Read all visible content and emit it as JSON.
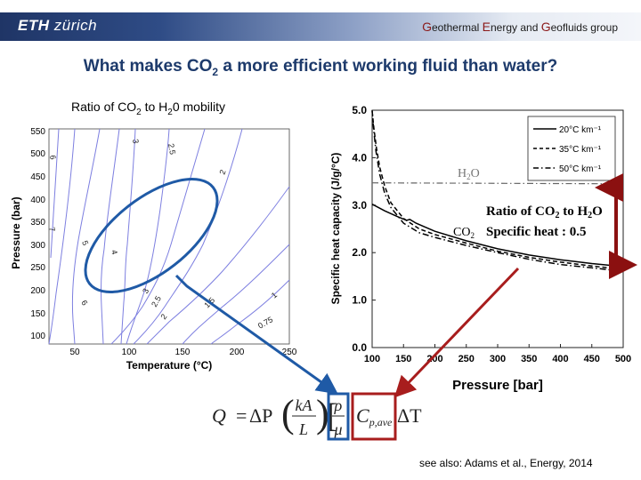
{
  "header": {
    "logo_main": "ETH",
    "logo_sub": "zürich",
    "group": {
      "G1": "G",
      "w1": "eothermal ",
      "E": "E",
      "w2": "nergy and ",
      "G2": "G",
      "w3": "eofluids group"
    }
  },
  "slide": {
    "title_pre": "What makes CO",
    "title_sub": "2",
    "title_post": " a more efficient working fluid than water?",
    "reference": "see also:  Adams et al., Energy, 2014"
  },
  "left_plot": {
    "title_pre": "Ratio of CO",
    "title_sub1": "2",
    "title_mid": " to H",
    "title_sub2": "2",
    "title_post": "0 mobility",
    "xlabel": "Temperature (°C)",
    "ylabel": "Pressure (bar)",
    "xticks": [
      "50",
      "100",
      "150",
      "200",
      "250"
    ],
    "yticks": [
      "100",
      "150",
      "200",
      "250",
      "300",
      "350",
      "400",
      "450",
      "500",
      "550"
    ],
    "contour_labels": [
      "6",
      "7",
      "5",
      "6",
      "4",
      "3",
      "2.5",
      "3",
      "2.5",
      "2",
      "2",
      "1.5",
      "1",
      "0.75"
    ]
  },
  "chart_data": {
    "type": "line",
    "xlabel": "Pressure [bar]",
    "ylabel": "Specific heat capacity (J/g/°C)",
    "xlim": [
      100,
      500
    ],
    "ylim": [
      0,
      5
    ],
    "xticks": [
      "100",
      "150",
      "200",
      "250",
      "300",
      "350",
      "400",
      "450",
      "500"
    ],
    "yticks": [
      "0.0",
      "1.0",
      "2.0",
      "3.0",
      "4.0",
      "5.0"
    ],
    "legend_position": "top-right",
    "series": [
      {
        "name": "20°C km⁻¹",
        "style": "solid",
        "x": [
          100,
          120,
          140,
          155,
          160,
          170,
          200,
          250,
          300,
          350,
          400,
          450,
          490
        ],
        "y": [
          3.02,
          2.88,
          2.76,
          2.68,
          2.7,
          2.62,
          2.45,
          2.25,
          2.08,
          1.95,
          1.85,
          1.77,
          1.72
        ]
      },
      {
        "name": "35°C km⁻¹",
        "style": "dashed",
        "x": [
          100,
          103,
          107,
          112,
          120,
          130,
          150,
          175,
          200,
          250,
          300,
          350,
          400,
          450,
          490
        ],
        "y": [
          4.98,
          4.6,
          4.2,
          3.8,
          3.4,
          3.05,
          2.72,
          2.5,
          2.38,
          2.2,
          2.03,
          1.9,
          1.8,
          1.72,
          1.66
        ]
      },
      {
        "name": "50°C km⁻¹",
        "style": "dash-dot",
        "x": [
          100,
          102,
          106,
          112,
          120,
          130,
          150,
          175,
          200,
          250,
          300,
          350,
          400,
          450,
          490
        ],
        "y": [
          5.0,
          4.65,
          4.15,
          3.65,
          3.25,
          2.95,
          2.62,
          2.42,
          2.32,
          2.15,
          2.0,
          1.86,
          1.75,
          1.68,
          1.62
        ]
      },
      {
        "name": "H2O",
        "style": "dash-dot-gray",
        "x": [
          100,
          500
        ],
        "y": [
          3.47,
          3.45
        ]
      }
    ],
    "annotations": {
      "h2o": {
        "pre": "H",
        "sub": "2",
        "post": "O"
      },
      "co2": {
        "pre": "CO",
        "sub": "2",
        "post": ""
      },
      "ratio_line1": {
        "pre": "Ratio of CO",
        "sub1": "2",
        "mid": " to H",
        "sub2": "2",
        "post": "O"
      },
      "ratio_line2": "Specific heat : 0.5"
    }
  },
  "equation": {
    "Q": "Q",
    "eq": "=",
    "dP": "ΔP",
    "k": "kA",
    "L": "L",
    "rho": "ρ",
    "mu": "μ",
    "cp": "C",
    "cp_sub": "p,ave",
    "dT": "ΔT"
  },
  "colors": {
    "title_blue": "#1d3a6b",
    "ellipse_blue": "#1f5aa6",
    "arrow_red": "#a81d1d",
    "contour": "#7d7fe0",
    "header_dark": "#1f3566"
  }
}
